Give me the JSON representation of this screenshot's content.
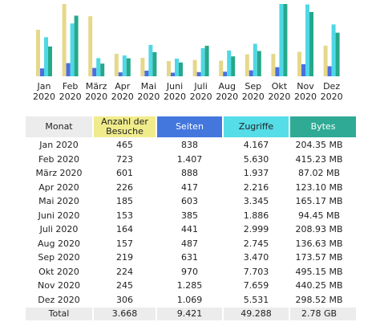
{
  "chart_data": {
    "type": "bar",
    "categories": [
      "Jan 2020",
      "Feb 2020",
      "März 2020",
      "Apr 2020",
      "Mai 2020",
      "Juni 2020",
      "Juli 2020",
      "Aug 2020",
      "Sep 2020",
      "Okt 2020",
      "Nov 2020",
      "Dez 2020"
    ],
    "category_lines": [
      [
        "Jan",
        "2020"
      ],
      [
        "Feb",
        "2020"
      ],
      [
        "März",
        "2020"
      ],
      [
        "Apr",
        "2020"
      ],
      [
        "Mai",
        "2020"
      ],
      [
        "Juni",
        "2020"
      ],
      [
        "Juli",
        "2020"
      ],
      [
        "Aug",
        "2020"
      ],
      [
        "Sep",
        "2020"
      ],
      [
        "Okt",
        "2020"
      ],
      [
        "Nov",
        "2020"
      ],
      [
        "Dez",
        "2020"
      ]
    ],
    "series": [
      {
        "name": "Anzahl der Besuche",
        "color": "#e6d88a",
        "values": [
          465,
          723,
          601,
          226,
          185,
          153,
          164,
          157,
          219,
          224,
          245,
          306
        ],
        "ymax": 723
      },
      {
        "name": "Seiten",
        "color": "#4a6fe0",
        "values": [
          838,
          1407,
          888,
          417,
          603,
          385,
          441,
          487,
          631,
          970,
          1285,
          1069
        ],
        "ymax": 7703
      },
      {
        "name": "Zugriffe",
        "color": "#4fd8e6",
        "values": [
          4167,
          5630,
          1937,
          2216,
          3345,
          1886,
          2999,
          2745,
          3470,
          7703,
          7659,
          5531
        ],
        "ymax": 7703
      },
      {
        "name": "Bytes",
        "color": "#26a88a",
        "values": [
          204.35,
          415.23,
          87.02,
          123.1,
          165.17,
          94.45,
          208.93,
          136.63,
          173.57,
          495.15,
          440.25,
          298.52
        ],
        "ymax": 495.15
      }
    ]
  },
  "table": {
    "headers": {
      "month": "Monat",
      "visits_line1": "Anzahl der",
      "visits_line2": "Besuche",
      "pages": "Seiten",
      "hits": "Zugriffe",
      "bytes": "Bytes"
    },
    "colors": {
      "month": "#ececec",
      "visits": "#f0ec8c",
      "pages": "#4477dd",
      "hits": "#55dde8",
      "bytes": "#2eaa95"
    },
    "rows": [
      {
        "month": "Jan 2020",
        "visits": "465",
        "pages": "838",
        "hits": "4.167",
        "bytes": "204.35 MB"
      },
      {
        "month": "Feb 2020",
        "visits": "723",
        "pages": "1.407",
        "hits": "5.630",
        "bytes": "415.23 MB"
      },
      {
        "month": "März 2020",
        "visits": "601",
        "pages": "888",
        "hits": "1.937",
        "bytes": "87.02 MB"
      },
      {
        "month": "Apr 2020",
        "visits": "226",
        "pages": "417",
        "hits": "2.216",
        "bytes": "123.10 MB"
      },
      {
        "month": "Mai 2020",
        "visits": "185",
        "pages": "603",
        "hits": "3.345",
        "bytes": "165.17 MB"
      },
      {
        "month": "Juni 2020",
        "visits": "153",
        "pages": "385",
        "hits": "1.886",
        "bytes": "94.45 MB"
      },
      {
        "month": "Juli 2020",
        "visits": "164",
        "pages": "441",
        "hits": "2.999",
        "bytes": "208.93 MB"
      },
      {
        "month": "Aug 2020",
        "visits": "157",
        "pages": "487",
        "hits": "2.745",
        "bytes": "136.63 MB"
      },
      {
        "month": "Sep 2020",
        "visits": "219",
        "pages": "631",
        "hits": "3.470",
        "bytes": "173.57 MB"
      },
      {
        "month": "Okt 2020",
        "visits": "224",
        "pages": "970",
        "hits": "7.703",
        "bytes": "495.15 MB"
      },
      {
        "month": "Nov 2020",
        "visits": "245",
        "pages": "1.285",
        "hits": "7.659",
        "bytes": "440.25 MB"
      },
      {
        "month": "Dez 2020",
        "visits": "306",
        "pages": "1.069",
        "hits": "5.531",
        "bytes": "298.52 MB"
      }
    ],
    "total": {
      "month": "Total",
      "visits": "3.668",
      "pages": "9.421",
      "hits": "49.288",
      "bytes": "2.78 GB"
    }
  }
}
